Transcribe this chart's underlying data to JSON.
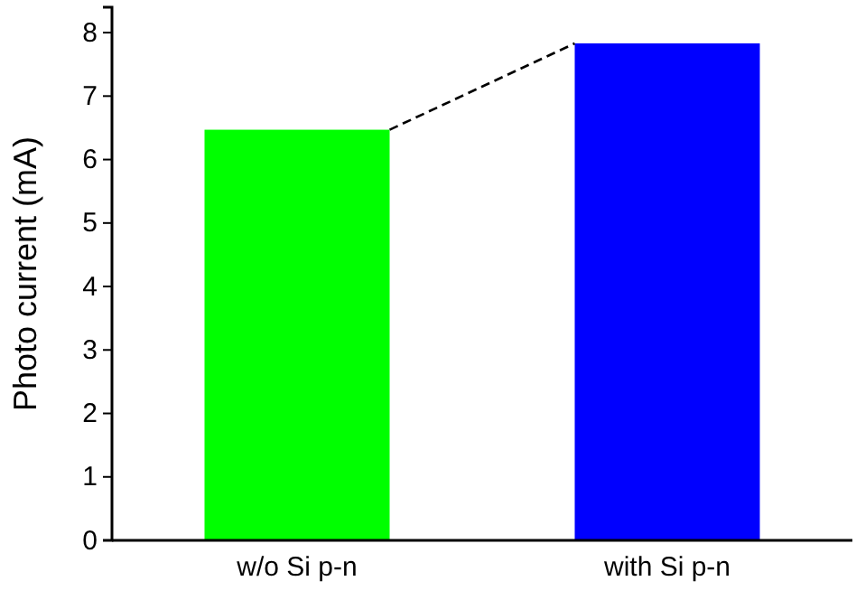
{
  "chart_data": {
    "type": "bar",
    "ylabel": "Photo current (mA)",
    "categories": [
      "w/o Si p-n",
      "with Si p-n"
    ],
    "values": [
      6.47,
      7.83
    ],
    "colors": [
      "#00ff00",
      "#0000ff"
    ],
    "ylim": [
      0,
      8.4
    ],
    "yticks": [
      0,
      1,
      2,
      3,
      4,
      5,
      6,
      7,
      8
    ],
    "grid": false
  }
}
